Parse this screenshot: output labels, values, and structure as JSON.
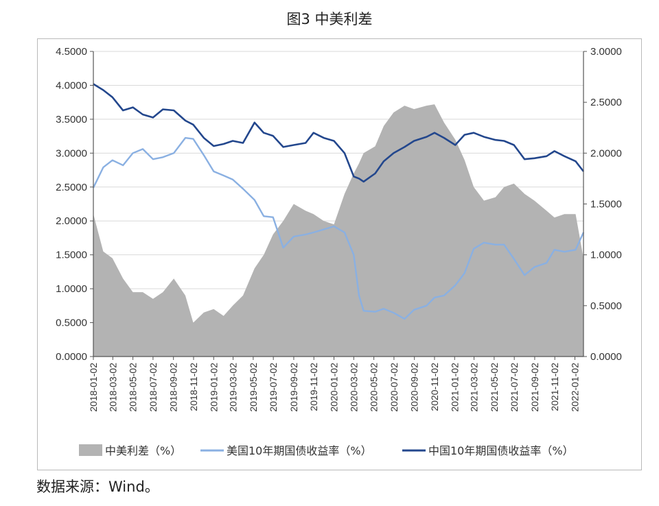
{
  "title": "图3  中美利差",
  "source": "数据来源：Wind。",
  "chart_data": {
    "type": "line",
    "title": "图3  中美利差",
    "x_tick_labels": [
      "2018-01-02",
      "2018-03-02",
      "2018-05-02",
      "2018-07-02",
      "2018-09-02",
      "2018-11-02",
      "2019-01-02",
      "2019-03-02",
      "2019-05-02",
      "2019-07-02",
      "2019-09-02",
      "2019-11-02",
      "2020-01-02",
      "2020-03-02",
      "2020-05-02",
      "2020-07-02",
      "2020-09-02",
      "2020-11-02",
      "2021-01-02",
      "2021-03-02",
      "2021-05-02",
      "2021-07-02",
      "2021-09-02",
      "2021-11-02",
      "2022-01-02"
    ],
    "y_left": {
      "ylim": [
        0,
        4.5
      ],
      "ticks": [
        "0.0000",
        "0.5000",
        "1.0000",
        "1.5000",
        "2.0000",
        "2.5000",
        "3.0000",
        "3.5000",
        "4.0000",
        "4.5000"
      ]
    },
    "y_right": {
      "ylim": [
        0,
        3.0
      ],
      "ticks": [
        "0.0000",
        "0.5000",
        "1.0000",
        "1.5000",
        "2.0000",
        "2.5000",
        "3.0000"
      ]
    },
    "grid": true,
    "legend_position": "bottom",
    "series": [
      {
        "name": "中美利差（%）",
        "type": "area",
        "axis": "left",
        "color": "#b3b3b3",
        "x": [
          "2018-01-02",
          "2018-02-01",
          "2018-03-01",
          "2018-04-02",
          "2018-05-02",
          "2018-06-01",
          "2018-07-02",
          "2018-08-01",
          "2018-09-03",
          "2018-10-08",
          "2018-11-01",
          "2018-12-03",
          "2019-01-02",
          "2019-02-01",
          "2019-03-01",
          "2019-04-01",
          "2019-05-06",
          "2019-06-03",
          "2019-07-01",
          "2019-08-01",
          "2019-09-02",
          "2019-10-08",
          "2019-11-01",
          "2019-12-02",
          "2020-01-02",
          "2020-02-03",
          "2020-03-02",
          "2020-03-18",
          "2020-04-01",
          "2020-05-06",
          "2020-06-01",
          "2020-07-01",
          "2020-08-03",
          "2020-09-01",
          "2020-10-09",
          "2020-11-02",
          "2020-12-01",
          "2021-01-04",
          "2021-02-01",
          "2021-03-01",
          "2021-04-01",
          "2021-05-06",
          "2021-06-01",
          "2021-07-01",
          "2021-08-02",
          "2021-09-01",
          "2021-10-08",
          "2021-11-01",
          "2021-12-01",
          "2022-01-04",
          "2022-01-28"
        ],
        "values": [
          2.1,
          1.55,
          1.45,
          1.15,
          0.95,
          0.95,
          0.85,
          0.95,
          1.15,
          0.9,
          0.5,
          0.65,
          0.7,
          0.6,
          0.75,
          0.9,
          1.3,
          1.5,
          1.8,
          2.0,
          2.25,
          2.15,
          2.1,
          2.0,
          1.95,
          2.4,
          2.7,
          2.85,
          3.0,
          3.1,
          3.4,
          3.6,
          3.7,
          3.65,
          3.7,
          3.72,
          3.45,
          3.2,
          2.9,
          2.5,
          2.3,
          2.35,
          2.5,
          2.55,
          2.4,
          2.3,
          2.15,
          2.05,
          2.1,
          2.1,
          1.45
        ]
      },
      {
        "name": "美国10年期国债收益率（%）",
        "type": "line",
        "axis": "right",
        "color": "#8ab0e2",
        "x": [
          "2018-01-02",
          "2018-02-01",
          "2018-03-01",
          "2018-04-02",
          "2018-05-02",
          "2018-06-01",
          "2018-07-02",
          "2018-08-01",
          "2018-09-03",
          "2018-10-08",
          "2018-11-01",
          "2018-12-03",
          "2019-01-02",
          "2019-02-01",
          "2019-03-01",
          "2019-04-01",
          "2019-05-06",
          "2019-06-03",
          "2019-07-01",
          "2019-08-01",
          "2019-09-02",
          "2019-10-08",
          "2019-11-01",
          "2019-12-02",
          "2020-01-02",
          "2020-02-03",
          "2020-03-02",
          "2020-03-18",
          "2020-04-01",
          "2020-05-06",
          "2020-06-01",
          "2020-07-01",
          "2020-08-03",
          "2020-09-01",
          "2020-10-09",
          "2020-11-02",
          "2020-12-01",
          "2021-01-04",
          "2021-02-01",
          "2021-03-01",
          "2021-04-01",
          "2021-05-06",
          "2021-06-01",
          "2021-07-01",
          "2021-08-02",
          "2021-09-01",
          "2021-10-08",
          "2021-11-01",
          "2021-12-01",
          "2022-01-04",
          "2022-01-28"
        ],
        "values": [
          1.66,
          1.86,
          1.93,
          1.88,
          2.0,
          2.04,
          1.94,
          1.96,
          2.0,
          2.15,
          2.14,
          1.98,
          1.82,
          1.78,
          1.74,
          1.65,
          1.54,
          1.38,
          1.37,
          1.07,
          1.18,
          1.2,
          1.22,
          1.25,
          1.28,
          1.22,
          1.0,
          0.6,
          0.45,
          0.44,
          0.47,
          0.43,
          0.37,
          0.46,
          0.5,
          0.58,
          0.6,
          0.7,
          0.82,
          1.06,
          1.12,
          1.1,
          1.1,
          0.96,
          0.8,
          0.88,
          0.92,
          1.05,
          1.03,
          1.05,
          1.22
        ]
      },
      {
        "name": "中国10年期国债收益率（%）",
        "type": "line",
        "axis": "right",
        "color": "#23478d",
        "x": [
          "2018-01-02",
          "2018-02-01",
          "2018-03-01",
          "2018-04-02",
          "2018-05-02",
          "2018-06-01",
          "2018-07-02",
          "2018-08-01",
          "2018-09-03",
          "2018-10-08",
          "2018-11-01",
          "2018-12-03",
          "2019-01-02",
          "2019-02-01",
          "2019-03-01",
          "2019-04-01",
          "2019-05-06",
          "2019-06-03",
          "2019-07-01",
          "2019-08-01",
          "2019-09-02",
          "2019-10-08",
          "2019-11-01",
          "2019-12-02",
          "2020-01-02",
          "2020-02-03",
          "2020-03-02",
          "2020-03-18",
          "2020-04-01",
          "2020-05-06",
          "2020-06-01",
          "2020-07-01",
          "2020-08-03",
          "2020-09-01",
          "2020-10-09",
          "2020-11-02",
          "2020-12-01",
          "2021-01-04",
          "2021-02-01",
          "2021-03-01",
          "2021-04-01",
          "2021-05-06",
          "2021-06-01",
          "2021-07-01",
          "2021-08-02",
          "2021-09-01",
          "2021-10-08",
          "2021-11-01",
          "2021-12-01",
          "2022-01-04",
          "2022-01-28"
        ],
        "values": [
          2.68,
          2.62,
          2.55,
          2.42,
          2.45,
          2.38,
          2.35,
          2.43,
          2.42,
          2.32,
          2.28,
          2.15,
          2.07,
          2.09,
          2.12,
          2.1,
          2.3,
          2.2,
          2.17,
          2.06,
          2.08,
          2.1,
          2.2,
          2.15,
          2.12,
          2.0,
          1.77,
          1.75,
          1.72,
          1.8,
          1.92,
          2.0,
          2.06,
          2.12,
          2.16,
          2.2,
          2.15,
          2.08,
          2.18,
          2.2,
          2.16,
          2.13,
          2.12,
          2.08,
          1.94,
          1.95,
          1.97,
          2.02,
          1.97,
          1.92,
          1.82
        ]
      }
    ]
  }
}
